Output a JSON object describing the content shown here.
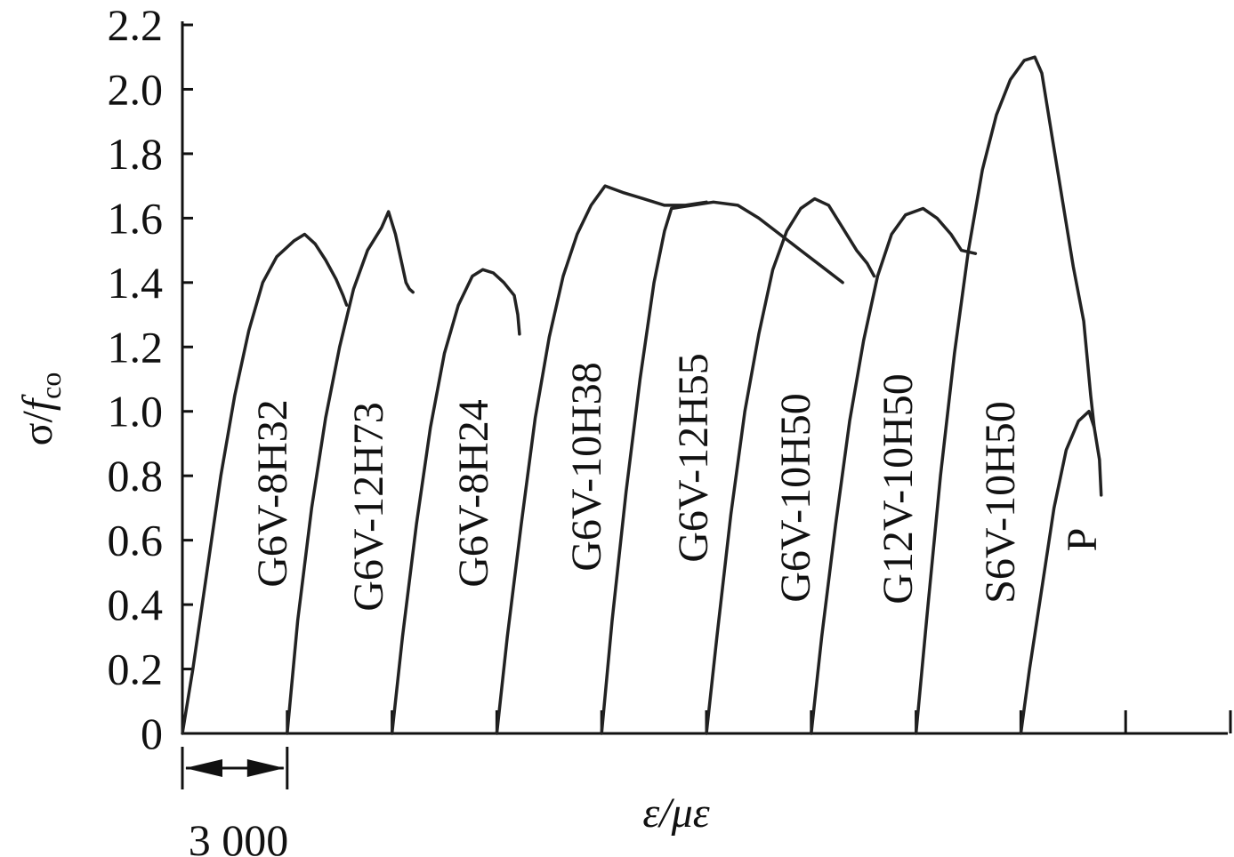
{
  "chart_data": {
    "type": "line",
    "title": "",
    "xlabel": "ε/με",
    "ylabel": "σ/fco",
    "ylabel_parts": {
      "main": "σ/",
      "italic_f": "f",
      "subscript": "co"
    },
    "ylim": [
      0,
      2.2
    ],
    "y_ticks": [
      0,
      0.2,
      0.4,
      0.6,
      0.8,
      1.0,
      1.2,
      1.4,
      1.6,
      1.8,
      2.0,
      2.2
    ],
    "y_tick_labels": [
      "0",
      "0.2",
      "0.4",
      "0.6",
      "0.8",
      "1.0",
      "1.2",
      "1.4",
      "1.6",
      "1.8",
      "2.0",
      "2.2"
    ],
    "x_axis_note": "curves horizontally offset; each tick spacing = 3000 με",
    "x_scale_bar": {
      "label": "3 000",
      "value": 3000
    },
    "x_tick_count": 10,
    "grid": false,
    "legend": "none (labels placed along curves)",
    "series": [
      {
        "name": "G6V-8H32",
        "offset": 0,
        "points": [
          [
            0,
            0
          ],
          [
            300,
            0.2
          ],
          [
            700,
            0.5
          ],
          [
            1100,
            0.8
          ],
          [
            1500,
            1.05
          ],
          [
            1900,
            1.25
          ],
          [
            2300,
            1.4
          ],
          [
            2700,
            1.48
          ],
          [
            3200,
            1.53
          ],
          [
            3500,
            1.55
          ],
          [
            3800,
            1.52
          ],
          [
            4100,
            1.47
          ],
          [
            4400,
            1.41
          ],
          [
            4600,
            1.36
          ],
          [
            4700,
            1.33
          ]
        ]
      },
      {
        "name": "G6V-12H73",
        "offset": 3000,
        "points": [
          [
            0,
            0
          ],
          [
            300,
            0.35
          ],
          [
            700,
            0.7
          ],
          [
            1100,
            0.98
          ],
          [
            1500,
            1.2
          ],
          [
            1900,
            1.38
          ],
          [
            2300,
            1.5
          ],
          [
            2700,
            1.57
          ],
          [
            2900,
            1.62
          ],
          [
            3100,
            1.55
          ],
          [
            3300,
            1.45
          ],
          [
            3400,
            1.4
          ],
          [
            3500,
            1.38
          ],
          [
            3600,
            1.37
          ]
        ]
      },
      {
        "name": "G6V-8H24",
        "offset": 6000,
        "points": [
          [
            0,
            0
          ],
          [
            300,
            0.3
          ],
          [
            700,
            0.65
          ],
          [
            1100,
            0.95
          ],
          [
            1500,
            1.18
          ],
          [
            1900,
            1.33
          ],
          [
            2300,
            1.42
          ],
          [
            2600,
            1.44
          ],
          [
            2900,
            1.43
          ],
          [
            3200,
            1.4
          ],
          [
            3500,
            1.36
          ],
          [
            3600,
            1.3
          ],
          [
            3650,
            1.24
          ]
        ]
      },
      {
        "name": "G6V-10H38",
        "offset": 9000,
        "points": [
          [
            0,
            0
          ],
          [
            300,
            0.3
          ],
          [
            700,
            0.65
          ],
          [
            1100,
            0.98
          ],
          [
            1500,
            1.23
          ],
          [
            1900,
            1.42
          ],
          [
            2300,
            1.55
          ],
          [
            2700,
            1.64
          ],
          [
            3100,
            1.7
          ],
          [
            3600,
            1.68
          ],
          [
            4200,
            1.66
          ],
          [
            4800,
            1.64
          ],
          [
            5400,
            1.64
          ],
          [
            6000,
            1.65
          ]
        ]
      },
      {
        "name": "G6V-12H55",
        "offset": 12000,
        "points": [
          [
            0,
            0
          ],
          [
            300,
            0.35
          ],
          [
            700,
            0.75
          ],
          [
            1100,
            1.1
          ],
          [
            1500,
            1.4
          ],
          [
            1800,
            1.56
          ],
          [
            2000,
            1.63
          ],
          [
            2600,
            1.64
          ],
          [
            3200,
            1.65
          ],
          [
            3900,
            1.64
          ],
          [
            4500,
            1.6
          ],
          [
            5100,
            1.55
          ],
          [
            5700,
            1.5
          ],
          [
            6300,
            1.45
          ],
          [
            6900,
            1.4
          ]
        ]
      },
      {
        "name": "G6V-10H50",
        "offset": 15000,
        "points": [
          [
            0,
            0
          ],
          [
            300,
            0.3
          ],
          [
            700,
            0.68
          ],
          [
            1100,
            1.0
          ],
          [
            1500,
            1.24
          ],
          [
            1900,
            1.44
          ],
          [
            2300,
            1.56
          ],
          [
            2700,
            1.63
          ],
          [
            3100,
            1.66
          ],
          [
            3500,
            1.64
          ],
          [
            3900,
            1.57
          ],
          [
            4300,
            1.5
          ],
          [
            4600,
            1.46
          ],
          [
            4800,
            1.42
          ]
        ]
      },
      {
        "name": "G12V-10H50",
        "offset": 18000,
        "points": [
          [
            0,
            0
          ],
          [
            300,
            0.3
          ],
          [
            700,
            0.65
          ],
          [
            1100,
            0.97
          ],
          [
            1500,
            1.22
          ],
          [
            1900,
            1.42
          ],
          [
            2300,
            1.55
          ],
          [
            2700,
            1.61
          ],
          [
            3200,
            1.63
          ],
          [
            3600,
            1.6
          ],
          [
            4000,
            1.55
          ],
          [
            4300,
            1.5
          ],
          [
            4700,
            1.49
          ]
        ]
      },
      {
        "name": "S6V-10H50",
        "offset": 21000,
        "points": [
          [
            0,
            0
          ],
          [
            300,
            0.35
          ],
          [
            700,
            0.8
          ],
          [
            1100,
            1.18
          ],
          [
            1500,
            1.5
          ],
          [
            1900,
            1.75
          ],
          [
            2300,
            1.92
          ],
          [
            2700,
            2.03
          ],
          [
            3100,
            2.09
          ],
          [
            3400,
            2.1
          ],
          [
            3600,
            2.05
          ],
          [
            3900,
            1.85
          ],
          [
            4200,
            1.65
          ],
          [
            4500,
            1.45
          ],
          [
            4800,
            1.28
          ],
          [
            5000,
            1.05
          ],
          [
            5100,
            0.95
          ]
        ]
      },
      {
        "name": "P",
        "offset": 24000,
        "points": [
          [
            0,
            0
          ],
          [
            250,
            0.2
          ],
          [
            600,
            0.45
          ],
          [
            950,
            0.7
          ],
          [
            1300,
            0.88
          ],
          [
            1650,
            0.97
          ],
          [
            1950,
            1.0
          ],
          [
            2100,
            0.95
          ],
          [
            2250,
            0.85
          ],
          [
            2300,
            0.74
          ]
        ]
      }
    ]
  }
}
